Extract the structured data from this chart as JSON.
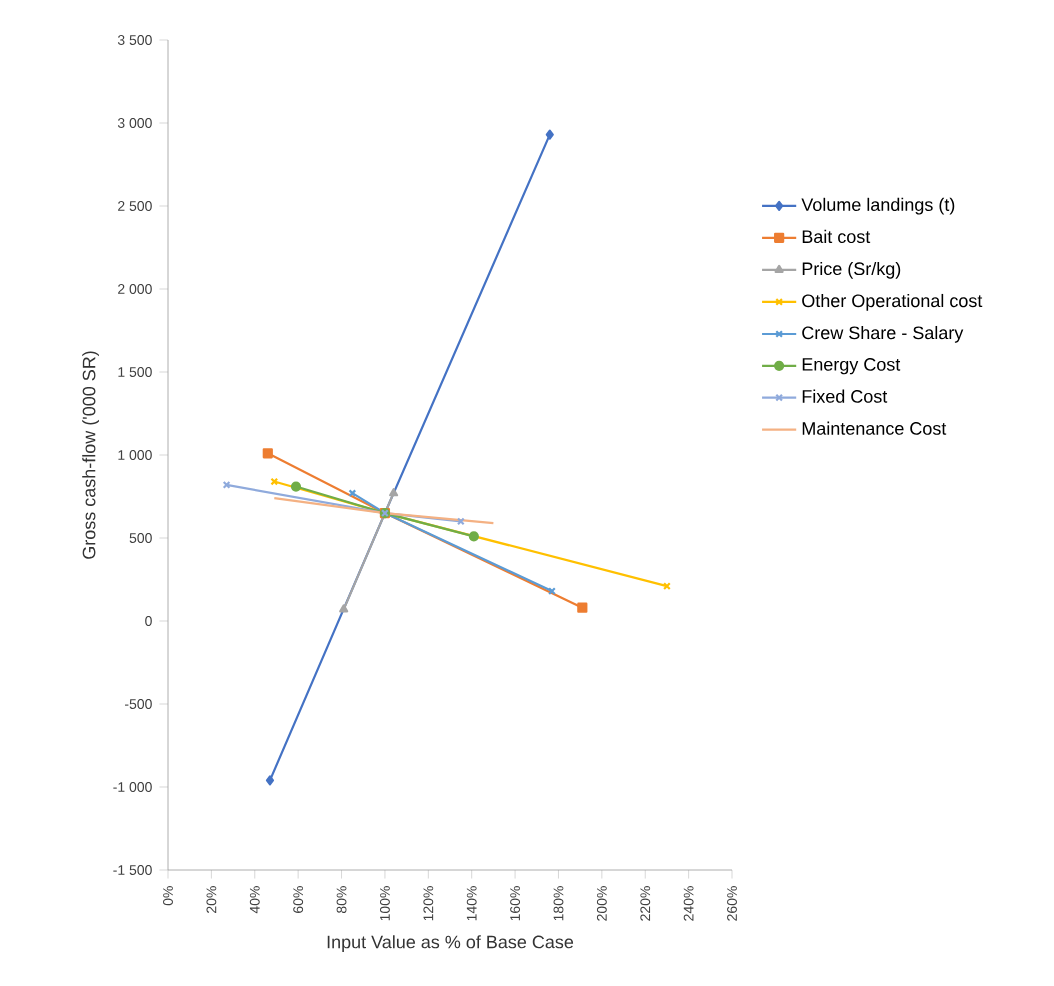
{
  "chart_data": {
    "type": "line",
    "xlabel": "Input Value as % of Base Case",
    "ylabel": "Gross cash-flow ('000 SR)",
    "xlim": [
      0,
      260
    ],
    "xticks": [
      {
        "value": 0,
        "label": "0%"
      },
      {
        "value": 20,
        "label": "20%"
      },
      {
        "value": 40,
        "label": "40%"
      },
      {
        "value": 60,
        "label": "60%"
      },
      {
        "value": 80,
        "label": "80%"
      },
      {
        "value": 100,
        "label": "100%"
      },
      {
        "value": 120,
        "label": "120%"
      },
      {
        "value": 140,
        "label": "140%"
      },
      {
        "value": 160,
        "label": "160%"
      },
      {
        "value": 180,
        "label": "180%"
      },
      {
        "value": 200,
        "label": "200%"
      },
      {
        "value": 220,
        "label": "220%"
      },
      {
        "value": 240,
        "label": "240%"
      },
      {
        "value": 260,
        "label": "260%"
      }
    ],
    "ylim": [
      -1500,
      3500
    ],
    "yticks": [
      {
        "value": -1500,
        "label": "-1 500"
      },
      {
        "value": -1000,
        "label": "-1 000"
      },
      {
        "value": -500,
        "label": "-500"
      },
      {
        "value": 0,
        "label": "0"
      },
      {
        "value": 500,
        "label": "500"
      },
      {
        "value": 1000,
        "label": "1 000"
      },
      {
        "value": 1500,
        "label": "1 500"
      },
      {
        "value": 2000,
        "label": "2 000"
      },
      {
        "value": 2500,
        "label": "2 500"
      },
      {
        "value": 3000,
        "label": "3 000"
      },
      {
        "value": 3500,
        "label": "3 500"
      }
    ],
    "legend": "right",
    "series": [
      {
        "name": "Volume landings (t)",
        "color": "#4472c4",
        "marker": "diamond",
        "x": [
          47,
          100,
          176
        ],
        "values": [
          -960,
          650,
          2930
        ]
      },
      {
        "name": "Bait cost",
        "color": "#ed7d31",
        "marker": "square",
        "x": [
          46,
          100,
          191
        ],
        "values": [
          1010,
          650,
          80
        ]
      },
      {
        "name": "Price (Sr/kg)",
        "color": "#a5a5a5",
        "marker": "triangle",
        "x": [
          81,
          100,
          104
        ],
        "values": [
          70,
          650,
          770
        ]
      },
      {
        "name": "Other Operational cost",
        "color": "#ffc000",
        "marker": "cross",
        "x": [
          49,
          100,
          230
        ],
        "values": [
          840,
          650,
          210
        ]
      },
      {
        "name": "Crew Share - Salary",
        "color": "#5b9bd5",
        "marker": "cross",
        "x": [
          85,
          100,
          177
        ],
        "values": [
          770,
          650,
          180
        ]
      },
      {
        "name": "Energy Cost",
        "color": "#70ad47",
        "marker": "circle",
        "x": [
          59,
          100,
          141
        ],
        "values": [
          810,
          650,
          510
        ]
      },
      {
        "name": "Fixed Cost",
        "color": "#8faadc",
        "marker": "cross",
        "x": [
          27,
          100,
          135
        ],
        "values": [
          820,
          650,
          600
        ]
      },
      {
        "name": "Maintenance Cost",
        "color": "#f4b183",
        "marker": "none",
        "x": [
          49,
          100,
          150
        ],
        "values": [
          740,
          650,
          590
        ]
      }
    ]
  }
}
